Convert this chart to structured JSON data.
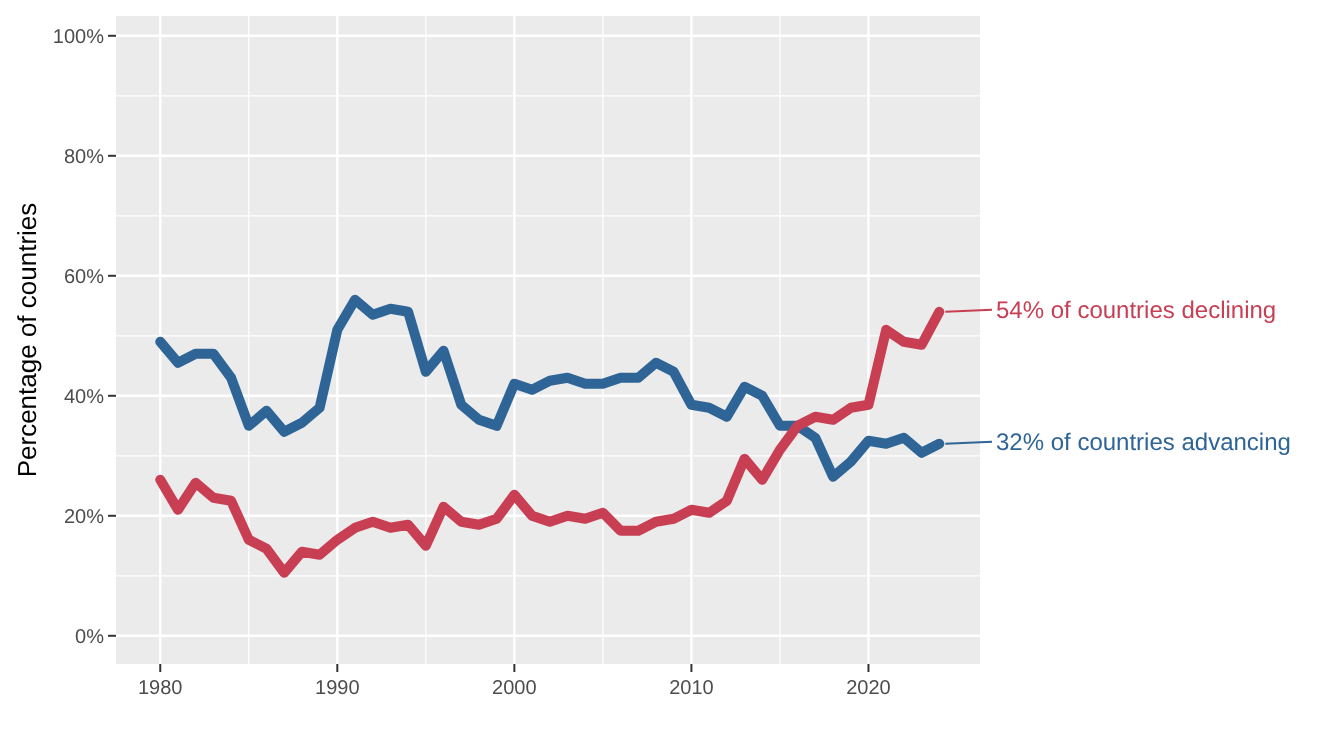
{
  "chart_data": {
    "type": "line",
    "ylabel": "Percentage of countries",
    "x": [
      1980,
      1981,
      1982,
      1983,
      1984,
      1985,
      1986,
      1987,
      1988,
      1989,
      1990,
      1991,
      1992,
      1993,
      1994,
      1995,
      1996,
      1997,
      1998,
      1999,
      2000,
      2001,
      2002,
      2003,
      2004,
      2005,
      2006,
      2007,
      2008,
      2009,
      2010,
      2011,
      2012,
      2013,
      2014,
      2015,
      2016,
      2017,
      2018,
      2019,
      2020,
      2021,
      2022,
      2023,
      2024
    ],
    "series": [
      {
        "color": "#2e6496",
        "values": [
          49,
          45.5,
          47,
          47,
          43,
          35,
          37.5,
          34,
          35.5,
          38,
          51,
          56,
          53.5,
          54.5,
          54,
          44,
          47.5,
          38.5,
          36,
          35,
          42,
          41,
          42.5,
          43,
          42,
          42,
          43,
          43,
          45.5,
          44,
          38.5,
          38,
          36.5,
          41.5,
          40,
          35,
          35,
          33,
          26.5,
          29,
          32.5,
          32,
          33,
          30.5,
          32
        ]
      },
      {
        "color": "#c83e52",
        "values": [
          26,
          21,
          25.5,
          23,
          22.5,
          16,
          14.5,
          10.5,
          14,
          13.5,
          16,
          18,
          19,
          18,
          18.5,
          15,
          21.5,
          19,
          18.5,
          19.5,
          23.5,
          20,
          19,
          20,
          19.5,
          20.5,
          17.5,
          17.5,
          19,
          19.5,
          21,
          20.5,
          22.5,
          29.5,
          26,
          31,
          35,
          36.5,
          36,
          38,
          38.5,
          51,
          49,
          48.5,
          54
        ]
      }
    ],
    "annotations": [
      {
        "text": "32% of countries advancing",
        "x": 2024,
        "y": 32
      },
      {
        "text": "54% of countries declining",
        "x": 2024,
        "y": 54
      }
    ],
    "xlim": [
      1977.5,
      2026.3
    ],
    "xticks": [
      1980,
      1990,
      2000,
      2010,
      2020
    ],
    "ylim": [
      -4.7,
      103.3
    ],
    "yticks": [
      {
        "value": 0,
        "label": "0%"
      },
      {
        "value": 20,
        "label": "20%"
      },
      {
        "value": 40,
        "label": "40%"
      },
      {
        "value": 60,
        "label": "60%"
      },
      {
        "value": 80,
        "label": "80%"
      },
      {
        "value": 100,
        "label": "100%"
      }
    ],
    "grid": true
  }
}
